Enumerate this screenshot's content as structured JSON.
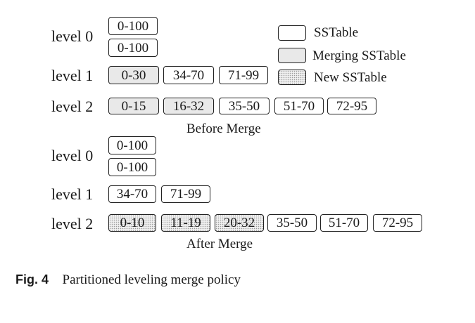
{
  "legend": {
    "sstable": "SSTable",
    "merging": "Merging SSTable",
    "new": "New SSTable"
  },
  "before": {
    "caption": "Before Merge",
    "levels": [
      {
        "label": "level 0",
        "tables": [
          {
            "range": "0-100",
            "kind": "sstable"
          },
          {
            "range": "0-100",
            "kind": "sstable"
          }
        ]
      },
      {
        "label": "level 1",
        "tables": [
          {
            "range": "0-30",
            "kind": "merging"
          },
          {
            "range": "34-70",
            "kind": "sstable"
          },
          {
            "range": "71-99",
            "kind": "sstable"
          }
        ]
      },
      {
        "label": "level 2",
        "tables": [
          {
            "range": "0-15",
            "kind": "merging"
          },
          {
            "range": "16-32",
            "kind": "merging"
          },
          {
            "range": "35-50",
            "kind": "sstable"
          },
          {
            "range": "51-70",
            "kind": "sstable"
          },
          {
            "range": "72-95",
            "kind": "sstable"
          }
        ]
      }
    ]
  },
  "after": {
    "caption": "After Merge",
    "levels": [
      {
        "label": "level 0",
        "tables": [
          {
            "range": "0-100",
            "kind": "sstable"
          },
          {
            "range": "0-100",
            "kind": "sstable"
          }
        ]
      },
      {
        "label": "level 1",
        "tables": [
          {
            "range": "34-70",
            "kind": "sstable"
          },
          {
            "range": "71-99",
            "kind": "sstable"
          }
        ]
      },
      {
        "label": "level 2",
        "tables": [
          {
            "range": "0-10",
            "kind": "new"
          },
          {
            "range": "11-19",
            "kind": "new"
          },
          {
            "range": "20-32",
            "kind": "new"
          },
          {
            "range": "35-50",
            "kind": "sstable"
          },
          {
            "range": "51-70",
            "kind": "sstable"
          },
          {
            "range": "72-95",
            "kind": "sstable"
          }
        ]
      }
    ]
  },
  "figure": {
    "number": "Fig. 4",
    "title": "Partitioned leveling merge policy"
  }
}
